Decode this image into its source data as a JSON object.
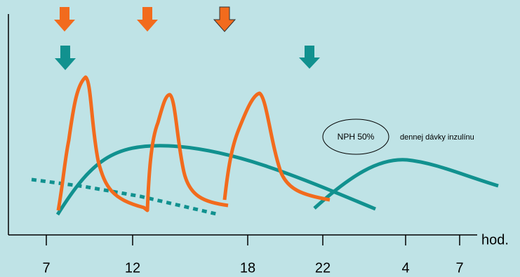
{
  "axis": {
    "ticks": [
      "7",
      "12",
      "18",
      "22",
      "4",
      "7"
    ],
    "unit": "hod."
  },
  "annotation": {
    "label": "NPH 50%",
    "text": "dennej dávky inzulínu"
  }
}
